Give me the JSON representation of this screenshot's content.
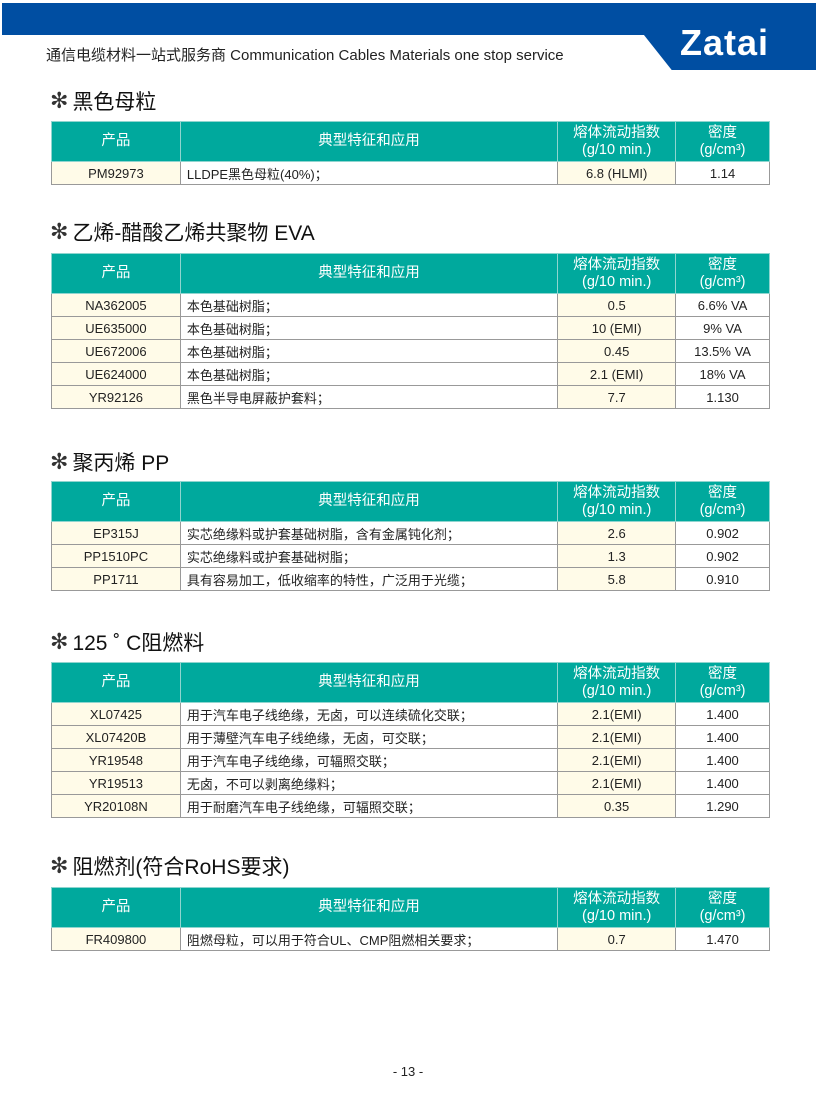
{
  "header": {
    "tagline": "通信电缆材料一站式服务商  Communication Cables Materials one stop service",
    "logo": "Zatai"
  },
  "columns": [
    "产品",
    "典型特征和应用",
    "熔体流动指数",
    "(g/10 min.)",
    "密度",
    "(g/cm³)"
  ],
  "sections": [
    {
      "title": "黑色母粒",
      "rows": [
        [
          "PM92973",
          "LLDPE黑色母粒(40%)；",
          "6.8 (HLMI)",
          "1.14"
        ]
      ]
    },
    {
      "title": "乙烯-醋酸乙烯共聚物 EVA",
      "rows": [
        [
          "NA362005",
          "本色基础树脂；",
          "0.5",
          "6.6% VA"
        ],
        [
          "UE635000",
          "本色基础树脂；",
          "10 (EMI)",
          "9% VA"
        ],
        [
          "UE672006",
          "本色基础树脂；",
          "0.45",
          "13.5% VA"
        ],
        [
          "UE624000",
          "本色基础树脂；",
          "2.1 (EMI)",
          "18% VA"
        ],
        [
          "YR92126",
          "黑色半导电屏蔽护套料；",
          "7.7",
          "1.130"
        ]
      ]
    },
    {
      "title": "聚丙烯 PP",
      "rows": [
        [
          "EP315J",
          "实芯绝缘料或护套基础树脂，含有金属钝化剂；",
          "2.6",
          "0.902"
        ],
        [
          "PP1510PC",
          "实芯绝缘料或护套基础树脂；",
          "1.3",
          "0.902"
        ],
        [
          "PP1711",
          "具有容易加工，低收缩率的特性，广泛用于光缆；",
          "5.8",
          "0.910"
        ]
      ]
    },
    {
      "title": "125 ˚ C阻燃料",
      "rows": [
        [
          "XL07425",
          "用于汽车电子线绝缘，无卤，可以连续硫化交联；",
          "2.1(EMI)",
          "1.400"
        ],
        [
          "XL07420B",
          "用于薄壁汽车电子线绝缘，无卤，可交联；",
          "2.1(EMI)",
          "1.400"
        ],
        [
          "YR19548",
          "用于汽车电子线绝缘，可辐照交联；",
          "2.1(EMI)",
          "1.400"
        ],
        [
          "YR19513",
          "无卤，不可以剥离绝缘料；",
          "2.1(EMI)",
          "1.400"
        ],
        [
          "YR20108N",
          "用于耐磨汽车电子线绝缘，可辐照交联；",
          "0.35",
          "1.290"
        ]
      ]
    },
    {
      "title": "阻燃剂(符合RoHS要求)",
      "rows": [
        [
          "FR409800",
          "阻燃母粒，可以用于符合UL、CMP阻燃相关要求；",
          "0.7",
          "1.470"
        ]
      ]
    }
  ],
  "footer": {
    "page": "- 13 -"
  },
  "colors": {
    "header_blue": "#004ea2",
    "table_header": "#00a99d",
    "cell_cream": "#fffbe8"
  }
}
